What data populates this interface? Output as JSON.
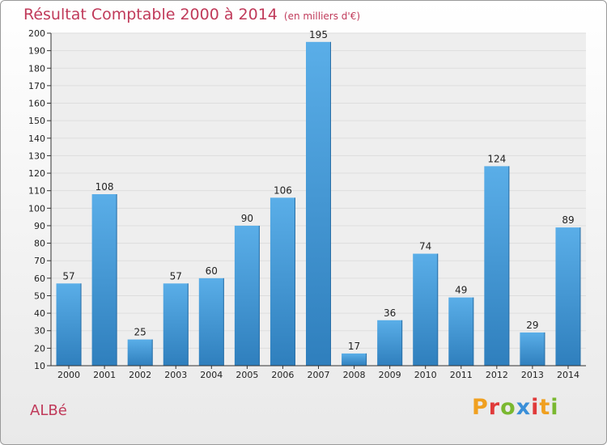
{
  "header": {
    "title": "Résultat Comptable 2000 à 2014",
    "unit": "(en milliers d'€)"
  },
  "footer": {
    "commune": "ALBé",
    "logo_text": "Proxiti"
  },
  "colors": {
    "title": "#c03a5a",
    "bar_top": "#5aaee8",
    "bar_bottom": "#2f7fbd",
    "grid": "#dddddd",
    "plot_bg": "#eeeeee",
    "logo_letters": [
      "#f0a020",
      "#e03a3a",
      "#7ab830",
      "#3a8fd8",
      "#e03a3a",
      "#f0a020",
      "#7ab830"
    ]
  },
  "chart_data": {
    "type": "bar",
    "title": "Résultat Comptable 2000 à 2014",
    "subtitle": "(en milliers d'€)",
    "xlabel": "",
    "ylabel": "",
    "categories": [
      "2000",
      "2001",
      "2002",
      "2003",
      "2004",
      "2005",
      "2006",
      "2007",
      "2008",
      "2009",
      "2010",
      "2011",
      "2012",
      "2013",
      "2014"
    ],
    "values": [
      57,
      108,
      25,
      57,
      60,
      90,
      106,
      195,
      17,
      36,
      74,
      49,
      124,
      29,
      89
    ],
    "ylim": [
      10,
      200
    ],
    "yticks": [
      10,
      20,
      30,
      40,
      50,
      60,
      70,
      80,
      90,
      100,
      110,
      120,
      130,
      140,
      150,
      160,
      170,
      180,
      190,
      200
    ],
    "grid": true,
    "legend": "none"
  }
}
